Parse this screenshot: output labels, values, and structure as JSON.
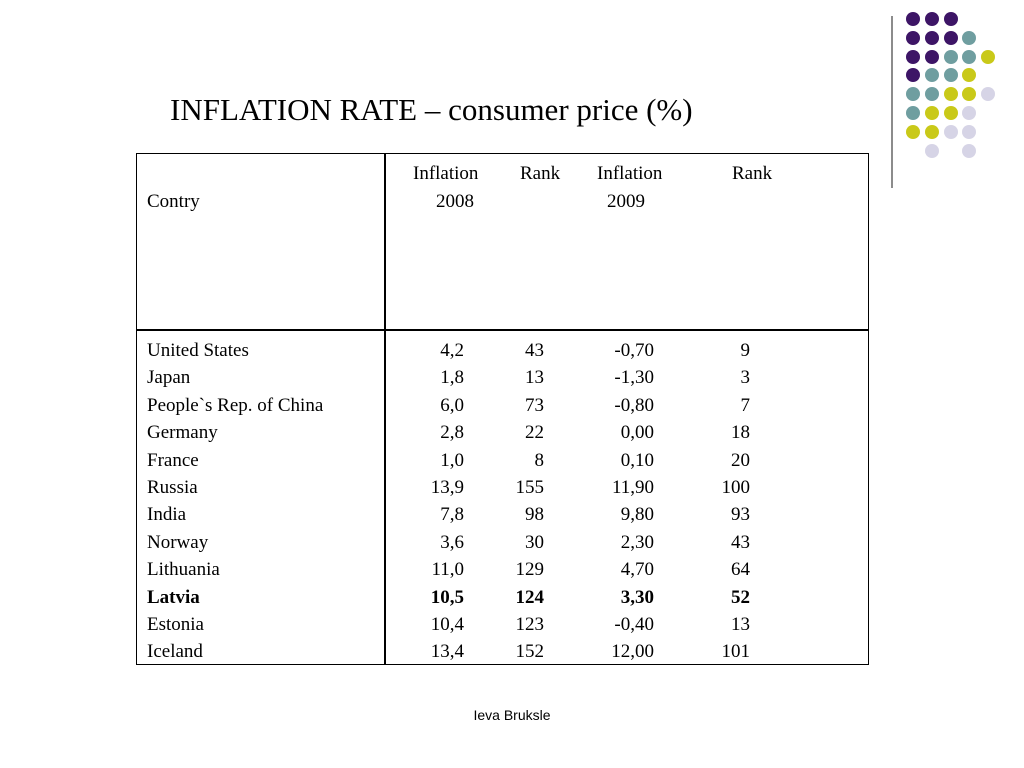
{
  "title": "INFLATION RATE – consumer price  (%)",
  "header": {
    "country": "Contry",
    "inflation_2008": "Inflation",
    "year_2008": "2008",
    "rank_2008": "Rank",
    "inflation_2009": "Inflation",
    "year_2009": "2009",
    "rank_2009": "Rank"
  },
  "rows": [
    {
      "country": "United States",
      "inf2008": "4,2",
      "rank2008": "43",
      "inf2009": "-0,70",
      "rank2009": "9",
      "bold": false
    },
    {
      "country": "Japan",
      "inf2008": "1,8",
      "rank2008": "13",
      "inf2009": "-1,30",
      "rank2009": "3",
      "bold": false
    },
    {
      "country": "People`s Rep. of China",
      "inf2008": "6,0",
      "rank2008": "73",
      "inf2009": "-0,80",
      "rank2009": "7",
      "bold": false
    },
    {
      "country": "Germany",
      "inf2008": "2,8",
      "rank2008": "22",
      "inf2009": "0,00",
      "rank2009": "18",
      "bold": false
    },
    {
      "country": "France",
      "inf2008": "1,0",
      "rank2008": "8",
      "inf2009": "0,10",
      "rank2009": "20",
      "bold": false
    },
    {
      "country": "Russia",
      "inf2008": "13,9",
      "rank2008": "155",
      "inf2009": "11,90",
      "rank2009": "100",
      "bold": false
    },
    {
      "country": "India",
      "inf2008": "7,8",
      "rank2008": "98",
      "inf2009": "9,80",
      "rank2009": "93",
      "bold": false
    },
    {
      "country": "Norway",
      "inf2008": "3,6",
      "rank2008": "30",
      "inf2009": "2,30",
      "rank2009": "43",
      "bold": false
    },
    {
      "country": "Lithuania",
      "inf2008": "11,0",
      "rank2008": "129",
      "inf2009": "4,70",
      "rank2009": "64",
      "bold": false
    },
    {
      "country": "Latvia",
      "inf2008": "10,5",
      "rank2008": "124",
      "inf2009": "3,30",
      "rank2009": "52",
      "bold": true
    },
    {
      "country": "Estonia",
      "inf2008": "10,4",
      "rank2008": "123",
      "inf2009": "-0,40",
      "rank2009": "13",
      "bold": false
    },
    {
      "country": "Iceland",
      "inf2008": "13,4",
      "rank2008": "152",
      "inf2009": "12,00",
      "rank2009": "101",
      "bold": false
    }
  ],
  "footer": "Ieva Bruksle",
  "decoration": {
    "icon": "dot-grid-icon",
    "colors": {
      "purple": "#3d1566",
      "teal": "#6f9ea0",
      "yellow": "#c9c919",
      "lavender": "#d6d4e6"
    },
    "dot_rows": [
      [
        "purple",
        "purple",
        "purple",
        "none",
        "none"
      ],
      [
        "purple",
        "purple",
        "purple",
        "teal",
        "none"
      ],
      [
        "purple",
        "purple",
        "teal",
        "teal",
        "yellow"
      ],
      [
        "purple",
        "teal",
        "teal",
        "yellow",
        "none"
      ],
      [
        "teal",
        "teal",
        "yellow",
        "yellow",
        "lavender"
      ],
      [
        "teal",
        "yellow",
        "yellow",
        "lavender",
        "none"
      ],
      [
        "yellow",
        "yellow",
        "lavender",
        "lavender",
        "none"
      ],
      [
        "none",
        "lavender",
        "none",
        "lavender",
        "none"
      ]
    ]
  }
}
